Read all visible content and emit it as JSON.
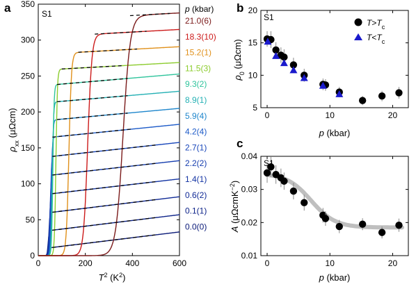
{
  "panel_letters": {
    "a": "a",
    "b": "b",
    "c": "c"
  },
  "chart_data": [
    {
      "type": "line",
      "panel": "a",
      "sample": "S1",
      "xlabel_base": "T",
      "xlabel_sup": "2",
      "xlabel_unit": " (K",
      "xlabel_unit_sup": "2",
      "xlabel_close": ")",
      "ylabel_base": "ρ",
      "ylabel_sub": "xx",
      "ylabel_unit": " (μΩcm)",
      "xlim": [
        0,
        600
      ],
      "ylim": [
        0,
        350
      ],
      "xticks": [
        0,
        200,
        400,
        600
      ],
      "yticks": [
        0,
        50,
        100,
        150,
        200,
        250,
        300,
        350
      ],
      "pressure_header": "p (kbar)",
      "series": [
        {
          "name": "0.0(0)",
          "color": "#0a1a78",
          "tc2": 40,
          "base": 9,
          "slope": 0.04,
          "fit_x": [
            60,
            500
          ]
        },
        {
          "name": "0.1(1)",
          "color": "#0c2288",
          "tc2": 42,
          "base": 33,
          "slope": 0.04,
          "fit_x": [
            60,
            500
          ]
        },
        {
          "name": "0.6(2)",
          "color": "#102a96",
          "tc2": 45,
          "base": 58,
          "slope": 0.04,
          "fit_x": [
            60,
            500
          ]
        },
        {
          "name": "1.4(1)",
          "color": "#1233a2",
          "tc2": 48,
          "base": 84,
          "slope": 0.038,
          "fit_x": [
            60,
            500
          ]
        },
        {
          "name": "2.2(2)",
          "color": "#143cae",
          "tc2": 50,
          "base": 110,
          "slope": 0.037,
          "fit_x": [
            60,
            500
          ]
        },
        {
          "name": "2.7(1)",
          "color": "#1846ba",
          "tc2": 52,
          "base": 136,
          "slope": 0.036,
          "fit_x": [
            60,
            500
          ]
        },
        {
          "name": "4.2(4)",
          "color": "#1c5ac8",
          "tc2": 55,
          "base": 163,
          "slope": 0.033,
          "fit_x": [
            60,
            400
          ]
        },
        {
          "name": "5.9(4)",
          "color": "#1e86cc",
          "tc2": 58,
          "base": 187,
          "slope": 0.03,
          "fit_x": [
            80,
            380
          ]
        },
        {
          "name": "8.9(1)",
          "color": "#24b0b4",
          "tc2": 60,
          "base": 212,
          "slope": 0.028,
          "fit_x": [
            80,
            380
          ]
        },
        {
          "name": "9.3(2)",
          "color": "#2fc49c",
          "tc2": 62,
          "base": 236,
          "slope": 0.028,
          "fit_x": [
            80,
            380
          ]
        },
        {
          "name": "11.5(3)",
          "color": "#8ccc2e",
          "tc2": 75,
          "base": 258,
          "slope": 0.018,
          "fit_x": [
            100,
            360
          ]
        },
        {
          "name": "15.2(1)",
          "color": "#e0901a",
          "tc2": 130,
          "base": 280,
          "slope": 0.018,
          "fit_x": [
            170,
            420
          ]
        },
        {
          "name": "18.3(10)",
          "color": "#cc1a1a",
          "tc2": 210,
          "base": 304,
          "slope": 0.018,
          "fit_x": [
            240,
            460
          ]
        },
        {
          "name": "21.0(6)",
          "color": "#7a1a1a",
          "tc2": 360,
          "base": 327,
          "slope": 0.018,
          "fit_x": [
            390,
            560
          ]
        }
      ],
      "top_levels": [
        330,
        312,
        295,
        270,
        252,
        230,
        215,
        200,
        185,
        170,
        147,
        128,
        100,
        73
      ]
    },
    {
      "type": "scatter",
      "panel": "b",
      "sample": "S1",
      "xlabel": "p (kbar)",
      "ylabel_base": "ρ",
      "ylabel_sub": "0",
      "ylabel_unit": " (μΩcm)",
      "xlim": [
        -1,
        22.5
      ],
      "ylim": [
        5,
        20
      ],
      "xticks": [
        0,
        10,
        20
      ],
      "yticks": [
        5,
        10,
        15,
        20
      ],
      "legend_position": "top-right",
      "series": [
        {
          "name": "T>Tc",
          "marker": "circle",
          "color": "#000000",
          "points": [
            {
              "x": 0.0,
              "y": 15.6,
              "err": 1.2
            },
            {
              "x": 0.6,
              "y": 15.5,
              "err": 1.3
            },
            {
              "x": 1.4,
              "y": 13.9,
              "err": 1.2
            },
            {
              "x": 2.2,
              "y": 13.1,
              "err": 1.2
            },
            {
              "x": 2.7,
              "y": 12.8,
              "err": 1.2
            },
            {
              "x": 4.2,
              "y": 11.6,
              "err": 1.1
            },
            {
              "x": 5.9,
              "y": 10.0,
              "err": 1.0
            },
            {
              "x": 8.9,
              "y": 8.6,
              "err": 0.9
            },
            {
              "x": 9.3,
              "y": 8.5,
              "err": 0.9
            },
            {
              "x": 11.5,
              "y": 7.4,
              "err": 0.8
            },
            {
              "x": 15.2,
              "y": 6.1,
              "err": 0.7
            },
            {
              "x": 18.3,
              "y": 6.8,
              "err": 0.8
            },
            {
              "x": 21.0,
              "y": 7.3,
              "err": 0.9
            }
          ]
        },
        {
          "name": "T<Tc",
          "marker": "triangle",
          "color": "#1a1acc",
          "points": [
            {
              "x": 0.1,
              "y": 15.2
            },
            {
              "x": 1.4,
              "y": 13.0
            },
            {
              "x": 2.7,
              "y": 11.9
            },
            {
              "x": 4.2,
              "y": 10.8
            },
            {
              "x": 5.9,
              "y": 9.6
            },
            {
              "x": 8.9,
              "y": 8.4
            },
            {
              "x": 11.5,
              "y": 7.1
            }
          ]
        }
      ]
    },
    {
      "type": "scatter",
      "panel": "c",
      "sample": "S1",
      "xlabel": "p (kbar)",
      "ylabel_base": "A",
      "ylabel_unit": " (μΩcmK",
      "ylabel_unit_sup": "−2",
      "ylabel_close": ")",
      "xlim": [
        -1,
        22.5
      ],
      "ylim": [
        0.01,
        0.04
      ],
      "xticks": [
        0,
        10,
        20
      ],
      "yticks": [
        0.01,
        0.02,
        0.03,
        0.04
      ],
      "ytick_labels": [
        "0.01",
        "0.02",
        "0.03",
        "0.04"
      ],
      "points": [
        {
          "x": 0.0,
          "y": 0.035,
          "err": 0.003
        },
        {
          "x": 0.6,
          "y": 0.0368,
          "err": 0.003
        },
        {
          "x": 1.4,
          "y": 0.0345,
          "err": 0.0028
        },
        {
          "x": 2.2,
          "y": 0.0335,
          "err": 0.0028
        },
        {
          "x": 2.7,
          "y": 0.0325,
          "err": 0.0026
        },
        {
          "x": 4.2,
          "y": 0.0295,
          "err": 0.0025
        },
        {
          "x": 5.9,
          "y": 0.026,
          "err": 0.0024
        },
        {
          "x": 8.9,
          "y": 0.0222,
          "err": 0.0022
        },
        {
          "x": 9.3,
          "y": 0.0212,
          "err": 0.0022
        },
        {
          "x": 11.5,
          "y": 0.0188,
          "err": 0.002
        },
        {
          "x": 15.2,
          "y": 0.0195,
          "err": 0.0018
        },
        {
          "x": 18.3,
          "y": 0.017,
          "err": 0.0018
        },
        {
          "x": 21.0,
          "y": 0.0192,
          "err": 0.002
        }
      ],
      "guide_curve": {
        "color": "#bfbfbf",
        "x0": 7.0,
        "high": 0.0348,
        "low": 0.0185,
        "width": 3.5
      }
    }
  ]
}
